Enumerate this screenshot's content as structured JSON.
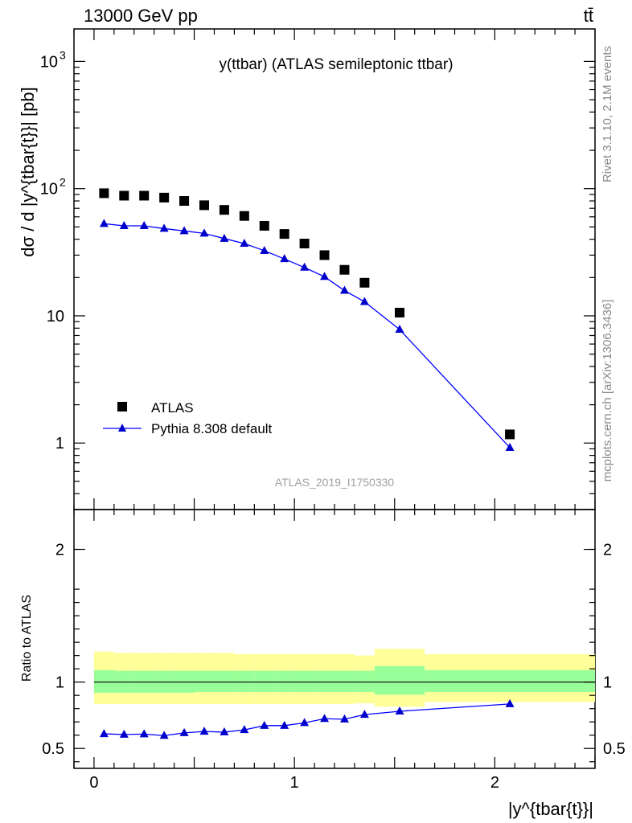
{
  "header": {
    "left": "13000 GeV pp",
    "right": "tt̄"
  },
  "side": {
    "rivet": "Rivet 3.1.10,  2.1M events",
    "mcplots": "mcplots.cern.ch [arXiv:1306.3436]"
  },
  "chart_data": [
    {
      "type": "scatter",
      "title": "y(ttbar) (ATLAS semileptonic ttbar)",
      "watermark": "ATLAS_2019_I1750330",
      "ylabel": "dσ / d |y^{tbar{t}}| [pb]",
      "yscale": "log",
      "xlim": [
        -0.1,
        2.5
      ],
      "ylim": [
        0.3,
        1800
      ],
      "y_tick_labels": [
        "1",
        "10",
        "10^2",
        "10^3"
      ],
      "legend_position": "lower-left",
      "series": [
        {
          "name": "ATLAS",
          "marker": "square",
          "color": "#000000",
          "x": [
            0.05,
            0.15,
            0.25,
            0.35,
            0.45,
            0.55,
            0.65,
            0.75,
            0.85,
            0.95,
            1.05,
            1.15,
            1.25,
            1.35,
            1.525,
            2.075
          ],
          "y": [
            92,
            88,
            88,
            85,
            80,
            74,
            68,
            61,
            51,
            44,
            37,
            30,
            23,
            18.2,
            10.6,
            1.17
          ]
        },
        {
          "name": "Pythia 8.308 default",
          "marker": "triangle",
          "color": "#0000ff",
          "x": [
            0.05,
            0.15,
            0.25,
            0.35,
            0.45,
            0.55,
            0.65,
            0.75,
            0.85,
            0.95,
            1.05,
            1.15,
            1.25,
            1.35,
            1.525,
            2.075
          ],
          "y": [
            53,
            51,
            51,
            48.5,
            46.5,
            44.5,
            40.5,
            37,
            32.5,
            28,
            24,
            20.3,
            15.8,
            12.9,
            7.8,
            0.92
          ]
        }
      ]
    },
    {
      "type": "line",
      "ylabel": "Ratio to ATLAS",
      "xlabel": "|y^{tbar{t}}|",
      "xlim": [
        -0.1,
        2.5
      ],
      "ylim": [
        0.35,
        2.3
      ],
      "x_tick_labels": [
        "0",
        "1",
        "2"
      ],
      "y_tick_labels": [
        "0.5",
        "1",
        "2"
      ],
      "bands": {
        "edges": [
          0,
          0.1,
          0.2,
          0.3,
          0.4,
          0.5,
          0.6,
          0.7,
          0.8,
          0.9,
          1.0,
          1.1,
          1.2,
          1.3,
          1.4,
          1.65,
          2.5
        ],
        "outer_color": "#ffff99",
        "inner_color": "#99ff99",
        "outer_lo": [
          0.835,
          0.835,
          0.835,
          0.835,
          0.835,
          0.835,
          0.835,
          0.835,
          0.835,
          0.835,
          0.835,
          0.835,
          0.835,
          0.84,
          0.815,
          0.85
        ],
        "outer_hi": [
          1.23,
          1.22,
          1.22,
          1.22,
          1.22,
          1.22,
          1.22,
          1.21,
          1.21,
          1.21,
          1.21,
          1.21,
          1.21,
          1.2,
          1.25,
          1.21
        ],
        "inner_lo": [
          0.92,
          0.92,
          0.92,
          0.92,
          0.92,
          0.925,
          0.925,
          0.925,
          0.925,
          0.925,
          0.925,
          0.925,
          0.925,
          0.925,
          0.905,
          0.925
        ],
        "inner_hi": [
          1.09,
          1.085,
          1.085,
          1.085,
          1.085,
          1.085,
          1.085,
          1.085,
          1.085,
          1.085,
          1.085,
          1.085,
          1.085,
          1.085,
          1.12,
          1.09
        ]
      },
      "series": [
        {
          "name": "Pythia 8.308 default",
          "color": "#0000ff",
          "x": [
            0.05,
            0.15,
            0.25,
            0.35,
            0.45,
            0.55,
            0.65,
            0.75,
            0.85,
            0.95,
            1.05,
            1.15,
            1.25,
            1.35,
            1.525,
            2.075
          ],
          "y": [
            0.61,
            0.605,
            0.608,
            0.597,
            0.617,
            0.628,
            0.623,
            0.64,
            0.672,
            0.672,
            0.693,
            0.724,
            0.72,
            0.755,
            0.78,
            0.835
          ]
        }
      ]
    }
  ]
}
